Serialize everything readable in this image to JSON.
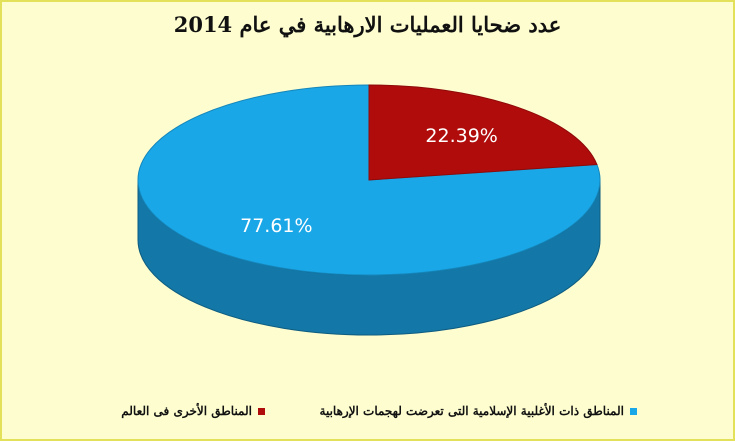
{
  "chart_data": {
    "type": "pie",
    "title": "عدد ضحايا العمليات الارهابية في عام 2014",
    "slices": [
      {
        "label": "المناطق ذات الأغلبية الإسلامية التى تعرضت لهجمات الإرهابية",
        "value": 77.61,
        "value_label": "77.61%",
        "color": "#1aa7e8"
      },
      {
        "label": "المناطق الأخرى فى العالم",
        "value": 22.39,
        "value_label": "22.39%",
        "color": "#b10c0c"
      }
    ],
    "style": "3d",
    "legend_position": "bottom"
  }
}
